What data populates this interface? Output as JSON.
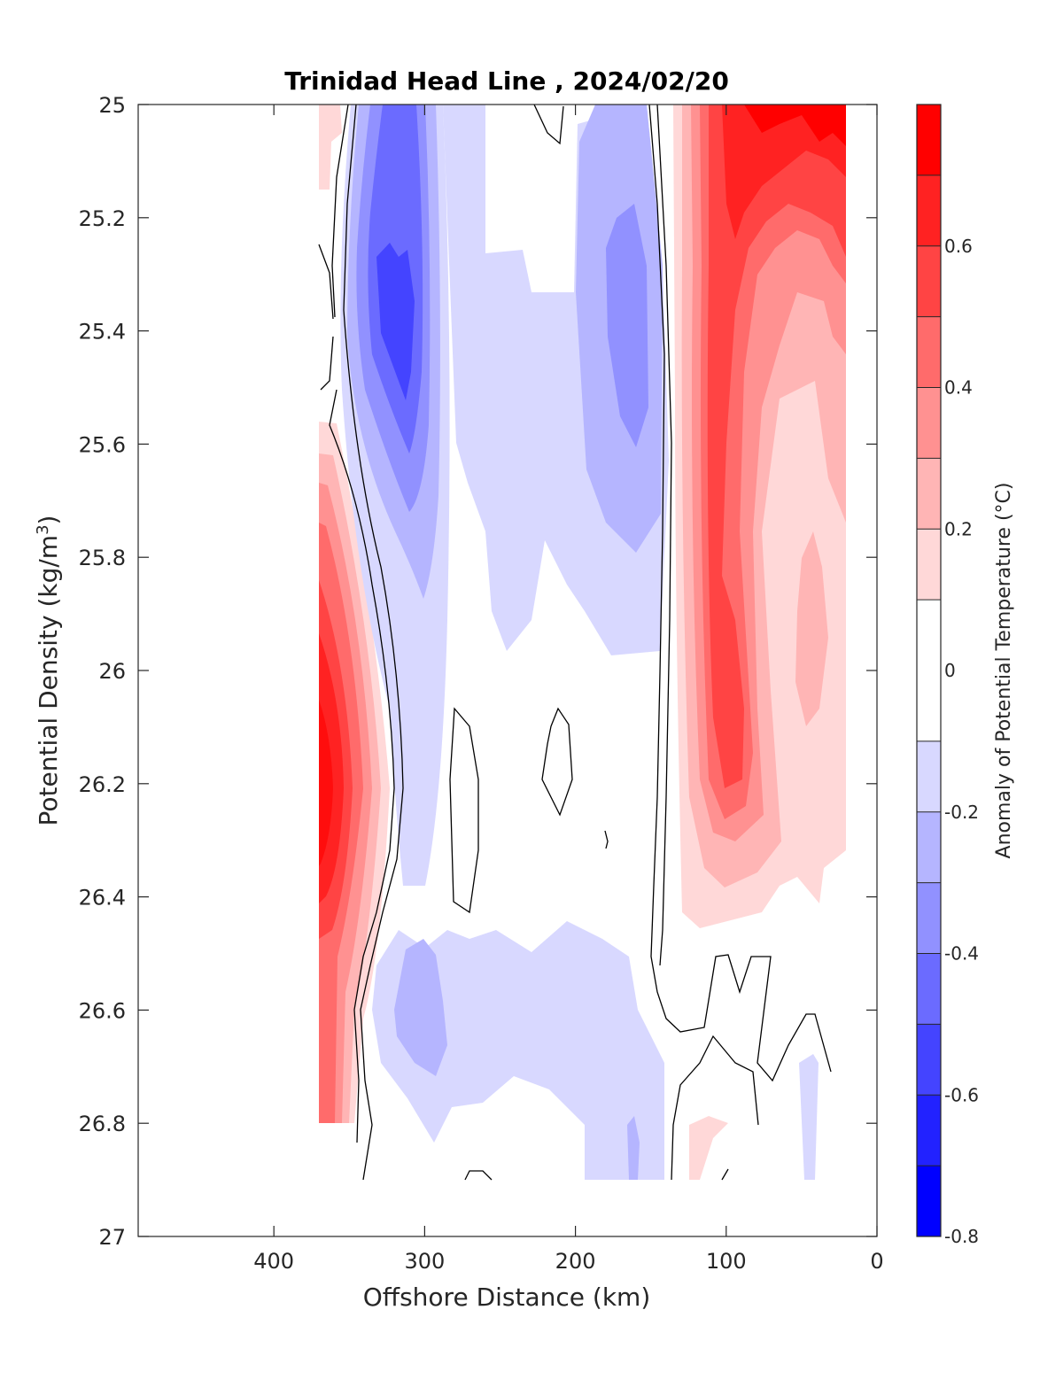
{
  "chart_data": {
    "type": "heatmap",
    "subtype": "filled-contour",
    "title": "Trinidad Head Line , 2024/02/20",
    "xlabel": "Offshore Distance (km)",
    "ylabel_main": "Potential Density (kg/m",
    "ylabel_sup": "3",
    "ylabel_close": ")",
    "xlim": [
      490,
      0
    ],
    "x_reversed": true,
    "ylim": [
      25,
      27
    ],
    "y_reversed": true,
    "x_ticks": [
      400,
      300,
      200,
      100,
      0
    ],
    "y_ticks": [
      25,
      25.2,
      25.4,
      25.6,
      25.8,
      26,
      26.2,
      26.4,
      26.6,
      26.8,
      27
    ],
    "x_tick_labels": [
      "400",
      "300",
      "200",
      "100",
      "0"
    ],
    "y_tick_labels": [
      "25",
      "25.2",
      "25.4",
      "25.6",
      "25.8",
      "26",
      "26.2",
      "26.4",
      "26.6",
      "26.8",
      "27"
    ],
    "colorbar": {
      "label": "Anomaly of Potential Temperature (°C)",
      "range": [
        -0.8,
        0.8
      ],
      "levels": [
        -0.8,
        -0.7,
        -0.6,
        -0.5,
        -0.4,
        -0.3,
        -0.2,
        -0.1,
        0.1,
        0.2,
        0.3,
        0.4,
        0.5,
        0.6,
        0.7,
        0.8
      ],
      "colors": [
        "#0000ff",
        "#2222ff",
        "#4444ff",
        "#6b6bff",
        "#9191ff",
        "#b5b5ff",
        "#d8d8ff",
        "#ffffff",
        "#ffd8d8",
        "#ffb5b5",
        "#ff9191",
        "#ff6b6b",
        "#ff4444",
        "#ff2222",
        "#ff0000"
      ],
      "tick_values": [
        -0.8,
        -0.6,
        -0.4,
        -0.2,
        0,
        0.2,
        0.4,
        0.6
      ],
      "tick_labels": [
        "-0.8",
        "-0.6",
        "-0.4",
        "-0.2",
        "0",
        "0.2",
        "0.4",
        "0.6"
      ]
    },
    "data_extent": {
      "x_min": 20,
      "x_max": 370,
      "y_min": 25,
      "y_max": 26.9
    },
    "zero_contour_color": "#000000",
    "regions": [
      {
        "sign": "warm",
        "peak": 0.7,
        "x": 365,
        "y": 26.2,
        "desc": "offshore warm core"
      },
      {
        "sign": "cold",
        "peak": -0.6,
        "x": 315,
        "y": 25.4,
        "desc": "offshore cold core"
      },
      {
        "sign": "cold",
        "peak": -0.2,
        "x": 240,
        "y": 25.6,
        "desc": "mid-line weak cold band"
      },
      {
        "sign": "cold",
        "peak": -0.4,
        "x": 170,
        "y": 25.45,
        "desc": "inshore cold core"
      },
      {
        "sign": "warm",
        "peak": 0.8,
        "x": 50,
        "y": 25.05,
        "desc": "nearshore warm surface"
      },
      {
        "sign": "warm",
        "peak": 0.5,
        "x": 95,
        "y": 26.1,
        "desc": "nearshore warm core"
      },
      {
        "sign": "cold",
        "peak": -0.3,
        "x": 295,
        "y": 26.6,
        "desc": "deep offshore cold patch"
      },
      {
        "sign": "cold",
        "peak": -0.2,
        "x": 200,
        "y": 26.75,
        "desc": "deep weak cold band"
      }
    ]
  }
}
